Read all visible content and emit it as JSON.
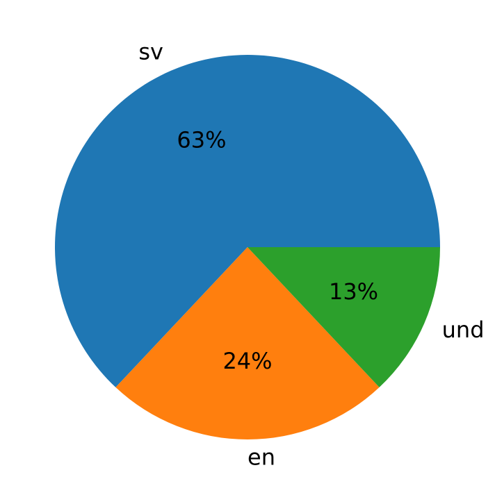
{
  "chart_data": {
    "type": "pie",
    "categories": [
      "sv",
      "en",
      "und"
    ],
    "values": [
      63,
      24,
      13
    ],
    "value_labels": [
      "63%",
      "24%",
      "13%"
    ],
    "colors": [
      "#1f77b4",
      "#ff7f0e",
      "#2ca02c"
    ]
  }
}
